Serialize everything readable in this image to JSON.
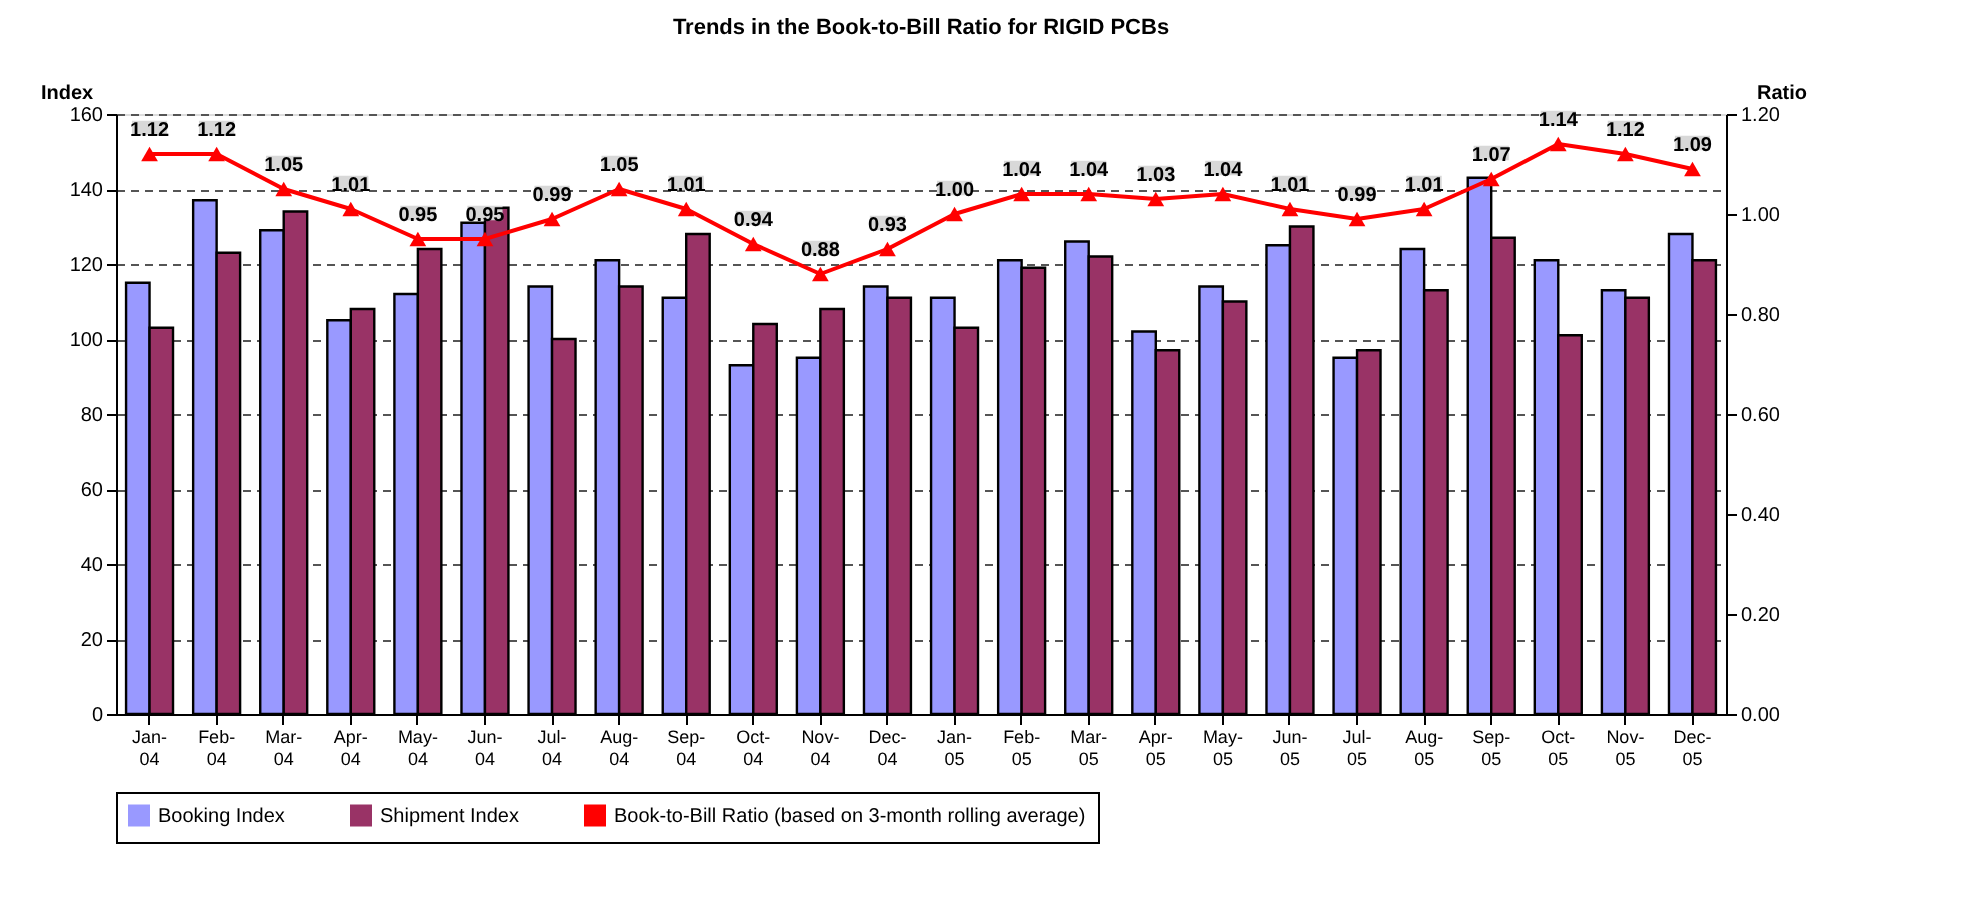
{
  "chart_data": {
    "type": "bar",
    "title": "Trends in the Book-to-Bill Ratio for RIGID PCBs",
    "ylabel": "Index",
    "y2label": "Ratio",
    "categories": [
      "Jan-04",
      "Feb-04",
      "Mar-04",
      "Apr-04",
      "May-04",
      "Jun-04",
      "Jul-04",
      "Aug-04",
      "Sep-04",
      "Oct-04",
      "Nov-04",
      "Dec-04",
      "Jan-05",
      "Feb-05",
      "Mar-05",
      "Apr-05",
      "May-05",
      "Jun-05",
      "Jul-05",
      "Aug-05",
      "Sep-05",
      "Oct-05",
      "Nov-05",
      "Dec-05"
    ],
    "series": [
      {
        "name": "Booking Index",
        "color": "#9999ff",
        "values": [
          115,
          137,
          129,
          105,
          112,
          131,
          114,
          121,
          111,
          93,
          95,
          114,
          111,
          121,
          126,
          102,
          114,
          125,
          95,
          124,
          143,
          121,
          113,
          128
        ]
      },
      {
        "name": "Shipment Index",
        "color": "#993366",
        "values": [
          103,
          123,
          134,
          108,
          124,
          135,
          100,
          114,
          128,
          104,
          108,
          111,
          103,
          119,
          122,
          97,
          110,
          130,
          97,
          113,
          127,
          101,
          111,
          121
        ]
      },
      {
        "name": "Book-to-Bill Ratio (based on 3-month rolling average)",
        "type": "line",
        "axis": "y2",
        "color": "#ff0000",
        "marker": "triangle",
        "values": [
          1.12,
          1.12,
          1.05,
          1.01,
          0.95,
          0.95,
          0.99,
          1.05,
          1.01,
          0.94,
          0.88,
          0.93,
          1.0,
          1.04,
          1.04,
          1.03,
          1.04,
          1.01,
          0.99,
          1.01,
          1.07,
          1.14,
          1.12,
          1.09
        ],
        "value_labels": [
          "1.12",
          "1.12",
          "1.05",
          "1.01",
          "0.95",
          "0.95",
          "0.99",
          "1.05",
          "1.01",
          "0.94",
          "0.88",
          "0.93",
          "1.00",
          "1.04",
          "1.04",
          "1.03",
          "1.04",
          "1.01",
          "0.99",
          "1.01",
          "1.07",
          "1.14",
          "1.12",
          "1.09"
        ]
      }
    ],
    "ylim": [
      0,
      160
    ],
    "yticks": [
      0,
      20,
      40,
      60,
      80,
      100,
      120,
      140,
      160
    ],
    "y2lim": [
      0,
      1.2
    ],
    "y2ticks": [
      {
        "value": 0,
        "label": "0.00"
      },
      {
        "value": 0.2,
        "label": "0.20"
      },
      {
        "value": 0.4,
        "label": "0.40"
      },
      {
        "value": 0.6,
        "label": "0.60"
      },
      {
        "value": 0.8,
        "label": "0.80"
      },
      {
        "value": 1.0,
        "label": "1.00"
      },
      {
        "value": 1.2,
        "label": "1.20"
      }
    ],
    "grid": "y",
    "legend": "bottom"
  }
}
